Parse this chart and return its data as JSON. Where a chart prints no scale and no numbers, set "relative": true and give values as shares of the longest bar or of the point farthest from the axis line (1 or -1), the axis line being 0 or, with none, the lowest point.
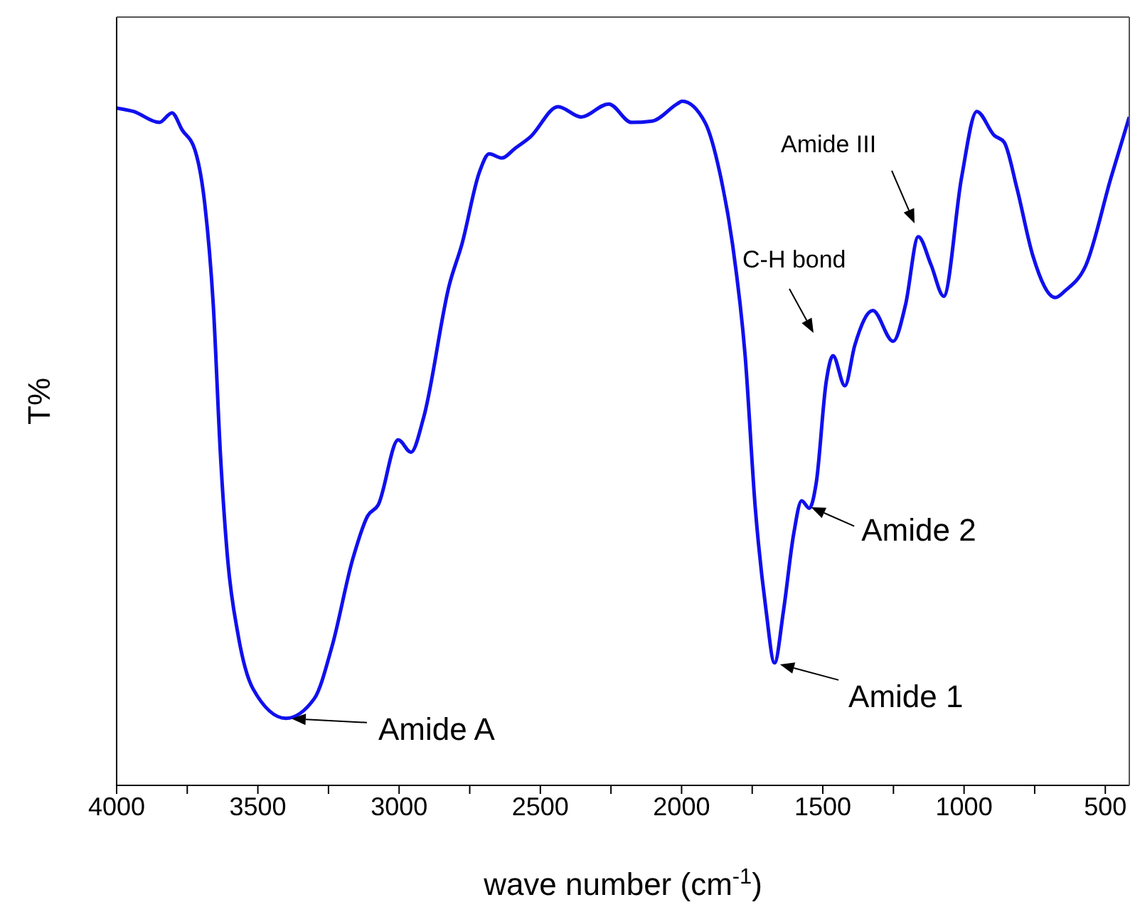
{
  "chart_data": {
    "type": "line",
    "relative": true,
    "xlabel": "wave number (cm$^{-1}$)",
    "ylabel": "T%",
    "color": "#1010ee",
    "marker": "none",
    "line_style": "solid",
    "grid": false,
    "legend": false,
    "xlim": [
      4000,
      415
    ],
    "xticks": [
      4000,
      {
        "value": 3750,
        "label": null
      },
      3500,
      {
        "value": 3250,
        "label": null
      },
      3000,
      {
        "value": 2750,
        "label": null
      },
      2500,
      {
        "value": 2250,
        "label": null
      },
      2000,
      {
        "value": 1750,
        "label": null
      },
      1500,
      {
        "value": 1250,
        "label": null
      },
      1000,
      {
        "value": 750,
        "label": null
      },
      500
    ],
    "x": [
      4000,
      3940,
      3849,
      3804,
      3768,
      3723,
      3688,
      3658,
      3632,
      3607,
      3570,
      3517,
      3401,
      3300,
      3237,
      3164,
      3111,
      3074,
      3003,
      2958,
      2913,
      2822,
      2777,
      2716,
      2681,
      2636,
      2590,
      2535,
      2437,
      2356,
      2258,
      2177,
      2104,
      2016,
      1998,
      1917,
      1865,
      1820,
      1775,
      1739,
      1701,
      1671,
      1639,
      1603,
      1575,
      1548,
      1523,
      1488,
      1464,
      1422,
      1387,
      1323,
      1251,
      1207,
      1162,
      1117,
      1072,
      1009,
      955,
      893,
      858,
      813,
      757,
      677,
      642,
      568,
      480,
      415
    ],
    "values": [
      0.99,
      0.985,
      0.969,
      0.983,
      0.958,
      0.929,
      0.85,
      0.703,
      0.48,
      0.331,
      0.22,
      0.141,
      0.098,
      0.127,
      0.204,
      0.331,
      0.394,
      0.41,
      0.505,
      0.487,
      0.538,
      0.732,
      0.792,
      0.896,
      0.923,
      0.917,
      0.931,
      0.948,
      0.992,
      0.977,
      0.996,
      0.969,
      0.971,
      0.996,
      1.0,
      0.969,
      0.896,
      0.792,
      0.628,
      0.405,
      0.256,
      0.179,
      0.256,
      0.368,
      0.416,
      0.405,
      0.443,
      0.59,
      0.628,
      0.584,
      0.643,
      0.694,
      0.649,
      0.703,
      0.802,
      0.761,
      0.715,
      0.888,
      0.985,
      0.95,
      0.94,
      0.873,
      0.775,
      0.713,
      0.723,
      0.761,
      0.888,
      0.977
    ],
    "annotations": [
      {
        "text": "Amide A",
        "x": 3401,
        "y": 0.098
      },
      {
        "text": "Amide 1",
        "x": 1671,
        "y": 0.179
      },
      {
        "text": "Amide 2",
        "x": 1560,
        "y": 0.41
      },
      "C-H bond",
      "Amide III"
    ]
  }
}
